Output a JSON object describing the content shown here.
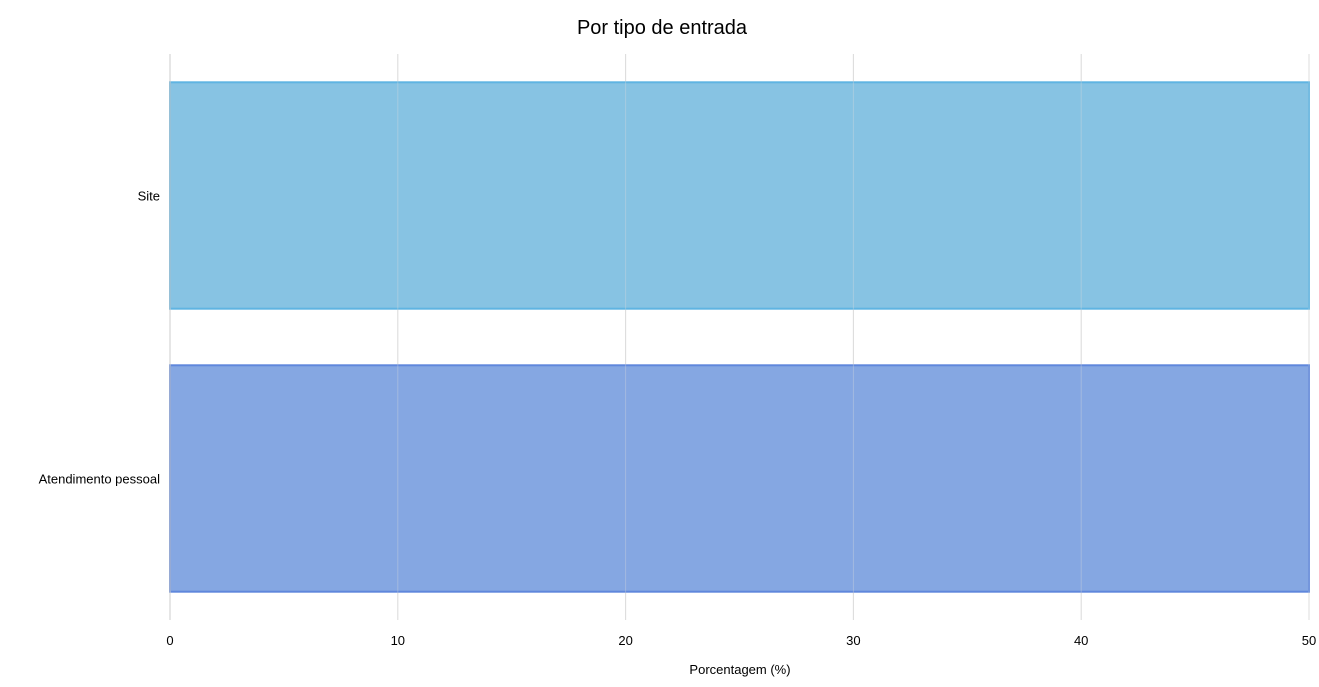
{
  "chart_data": {
    "type": "bar",
    "orientation": "horizontal",
    "title": "Por tipo de entrada",
    "xlabel": "Porcentagem (%)",
    "ylabel": "",
    "xlim": [
      0,
      50
    ],
    "x_ticks": [
      0,
      10,
      20,
      30,
      40,
      50
    ],
    "categories": [
      "Site",
      "Atendimento pessoal"
    ],
    "values": [
      50,
      50
    ],
    "colors": {
      "bars": [
        "#87c3e3",
        "#85a7e2"
      ],
      "bar_borders": [
        "#5fb4e2",
        "#5f87dc"
      ],
      "grid": "#dcdcdc",
      "axis": "#cccccc"
    },
    "grid": true,
    "legend": false
  }
}
